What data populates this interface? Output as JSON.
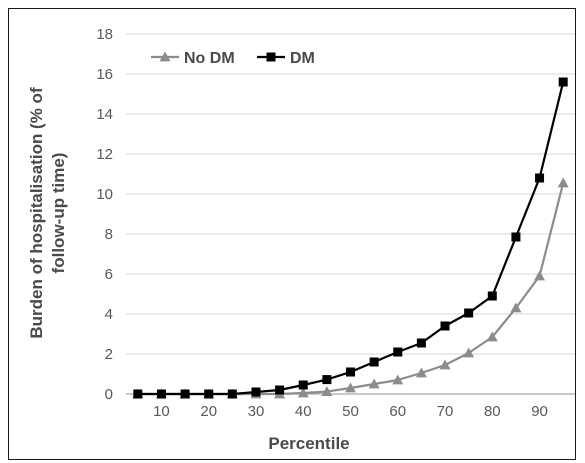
{
  "chart_data": {
    "type": "line",
    "title": "",
    "xlabel": "Percentile",
    "ylabel_lines": [
      "Burden of hospitalisation (% of",
      "follow-up time)"
    ],
    "x": [
      5,
      10,
      15,
      20,
      25,
      30,
      35,
      40,
      45,
      50,
      55,
      60,
      65,
      70,
      75,
      80,
      85,
      90,
      95
    ],
    "xlim": [
      2.5,
      97.5
    ],
    "xticks": [
      10,
      20,
      30,
      40,
      50,
      60,
      70,
      80,
      90
    ],
    "xtick_labels": [
      "10",
      "20",
      "30",
      "40",
      "50",
      "60",
      "70",
      "80",
      "90"
    ],
    "ylim": [
      0,
      18
    ],
    "yticks": [
      0,
      2,
      4,
      6,
      8,
      10,
      12,
      14,
      16,
      18
    ],
    "ytick_labels": [
      "0",
      "2",
      "4",
      "6",
      "8",
      "10",
      "12",
      "14",
      "16",
      "18"
    ],
    "grid": "horizontal",
    "legend_position": "top-left",
    "series": [
      {
        "name": "No DM",
        "color": "#8c8c8c",
        "marker": "triangle",
        "values": [
          0,
          0,
          0,
          0,
          0,
          0,
          0,
          0.05,
          0.12,
          0.3,
          0.5,
          0.7,
          1.05,
          1.45,
          2.05,
          2.85,
          4.3,
          5.9,
          10.55
        ]
      },
      {
        "name": "DM",
        "color": "#000000",
        "marker": "square",
        "values": [
          0,
          0,
          0,
          0,
          0,
          0.1,
          0.2,
          0.45,
          0.72,
          1.1,
          1.6,
          2.1,
          2.55,
          3.4,
          4.05,
          4.9,
          7.85,
          10.8,
          15.6
        ]
      }
    ]
  }
}
